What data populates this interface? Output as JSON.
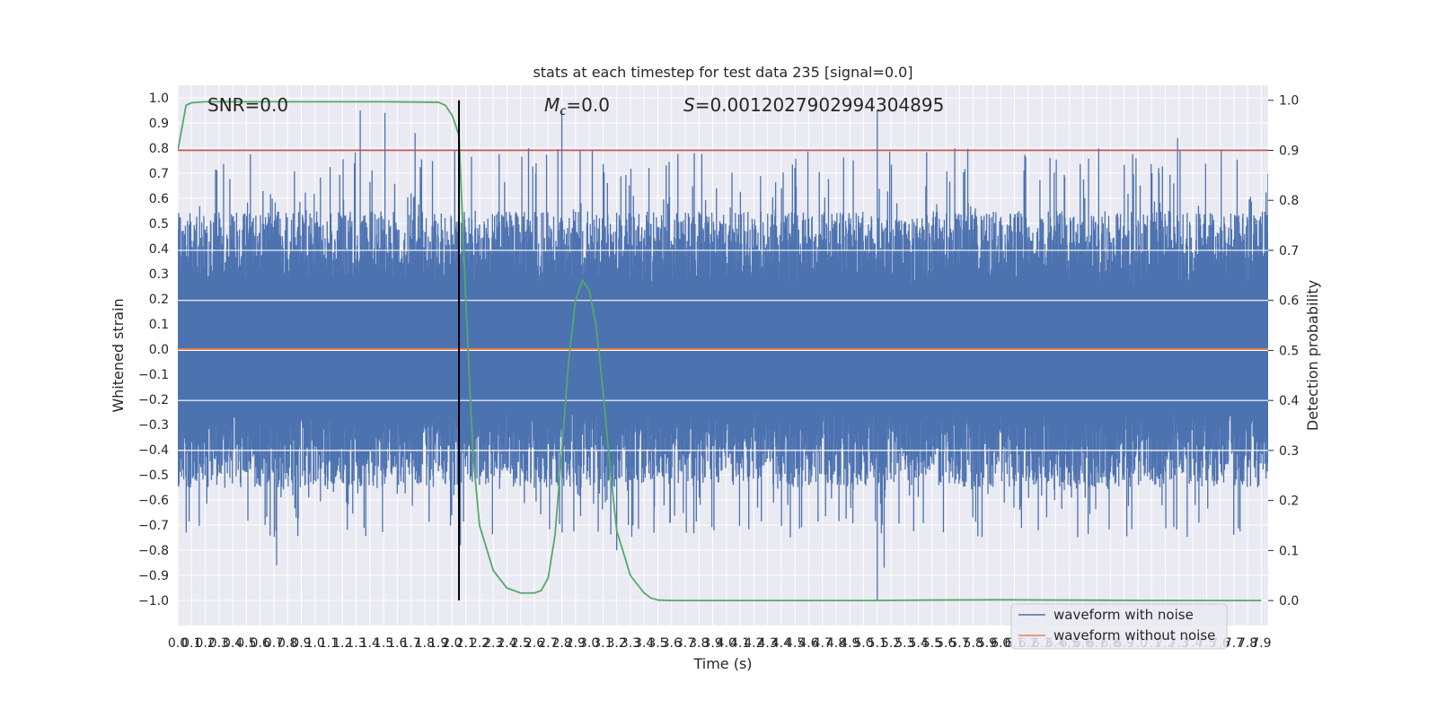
{
  "chart_data": {
    "type": "line",
    "title": "stats at each timestep for test data 235 [signal=0.0]",
    "xlabel": "Time (s)",
    "ylabel": "Whitened strain",
    "y2label": "Detection probability",
    "xlim": [
      0.0,
      7.95
    ],
    "ylim": [
      -1.1,
      1.05
    ],
    "y2lim": [
      -0.05,
      1.03
    ],
    "xticks": [
      "0.0",
      "0.1",
      "0.2",
      "0.3",
      "0.4",
      "0.5",
      "0.6",
      "0.7",
      "0.8",
      "0.9",
      "1.0",
      "1.1",
      "1.2",
      "1.3",
      "1.4",
      "1.5",
      "1.6",
      "1.7",
      "1.8",
      "1.9",
      "2.0",
      "2.1",
      "2.2",
      "2.3",
      "2.4",
      "2.5",
      "2.6",
      "2.7",
      "2.8",
      "2.9",
      "3.0",
      "3.1",
      "3.2",
      "3.3",
      "3.4",
      "3.5",
      "3.6",
      "3.7",
      "3.8",
      "3.9",
      "4.0",
      "4.1",
      "4.2",
      "4.3",
      "4.4",
      "4.5",
      "4.6",
      "4.7",
      "4.8",
      "4.9",
      "5.0",
      "5.1",
      "5.2",
      "5.3",
      "5.4",
      "5.5",
      "5.6",
      "5.7",
      "5.8",
      "5.9",
      "6.0",
      "6.1",
      "6.2",
      "6.3",
      "6.4",
      "6.5",
      "6.6",
      "6.7",
      "6.8",
      "6.9",
      "7.0",
      "7.1",
      "7.2",
      "7.3",
      "7.4",
      "7.5",
      "7.6",
      "7.7",
      "7.8",
      "7.9"
    ],
    "yticks": [
      "−1.0",
      "−0.9",
      "−0.8",
      "−0.7",
      "−0.6",
      "−0.5",
      "−0.4",
      "−0.3",
      "−0.2",
      "−0.1",
      "0.0",
      "0.1",
      "0.2",
      "0.3",
      "0.4",
      "0.5",
      "0.6",
      "0.7",
      "0.8",
      "0.9",
      "1.0"
    ],
    "y2ticks": [
      "0.0",
      "0.1",
      "0.2",
      "0.3",
      "0.4",
      "0.5",
      "0.6",
      "0.7",
      "0.8",
      "0.9",
      "1.0"
    ],
    "annotations": {
      "snr": "SNR=0.0",
      "mc_symbol": "M",
      "mc_sub": "c",
      "mc_value": "=0.0",
      "s_symbol": "S",
      "s_value": "=0.0012027902994304895"
    },
    "vline_x": 2.05,
    "threshold_y2": 0.9,
    "series": [
      {
        "name": "waveform with noise",
        "axis": "left",
        "color": "#4c72b0",
        "description": "dense whitened noise, mostly within ±0.4, spikes up to ~0.95 and down to ~−1.0",
        "envelope": {
          "max_spikes": [
            [
              1.33,
              0.95
            ],
            [
              1.51,
              0.94
            ],
            [
              1.73,
              0.86
            ],
            [
              2.8,
              0.95
            ],
            [
              5.1,
              0.95
            ],
            [
              7.29,
              0.84
            ]
          ],
          "min_spikes": [
            [
              0.72,
              -0.86
            ],
            [
              2.06,
              -0.78
            ],
            [
              3.2,
              -0.8
            ],
            [
              5.1,
              -1.0
            ],
            [
              5.15,
              -0.87
            ]
          ]
        }
      },
      {
        "name": "waveform without noise",
        "axis": "left",
        "color": "#dd8452",
        "values_const": 0.0
      },
      {
        "name": "",
        "axis": "right",
        "color": "#55a868",
        "x": [
          0.0,
          0.06,
          0.1,
          0.2,
          0.5,
          1.0,
          1.5,
          1.9,
          1.95,
          2.0,
          2.05,
          2.1,
          2.15,
          2.2,
          2.3,
          2.4,
          2.5,
          2.6,
          2.65,
          2.7,
          2.75,
          2.8,
          2.85,
          2.9,
          2.95,
          3.0,
          3.05,
          3.1,
          3.15,
          3.2,
          3.3,
          3.4,
          3.45,
          3.5,
          3.6,
          4.0,
          5.0,
          5.5,
          6.0,
          7.0,
          7.9
        ],
        "y": [
          0.9,
          0.99,
          0.995,
          0.997,
          0.997,
          0.997,
          0.997,
          0.996,
          0.99,
          0.97,
          0.93,
          0.6,
          0.3,
          0.15,
          0.06,
          0.025,
          0.015,
          0.015,
          0.02,
          0.045,
          0.13,
          0.3,
          0.48,
          0.6,
          0.64,
          0.62,
          0.55,
          0.42,
          0.27,
          0.14,
          0.05,
          0.015,
          0.005,
          0.001,
          0.0,
          0.0,
          0.0,
          0.001,
          0.0015,
          0.0003,
          0.0
        ]
      },
      {
        "name": "",
        "axis": "right",
        "color": "#c44e52",
        "values_const": 0.9
      }
    ],
    "legend_placement": "lower right",
    "grid": true
  }
}
